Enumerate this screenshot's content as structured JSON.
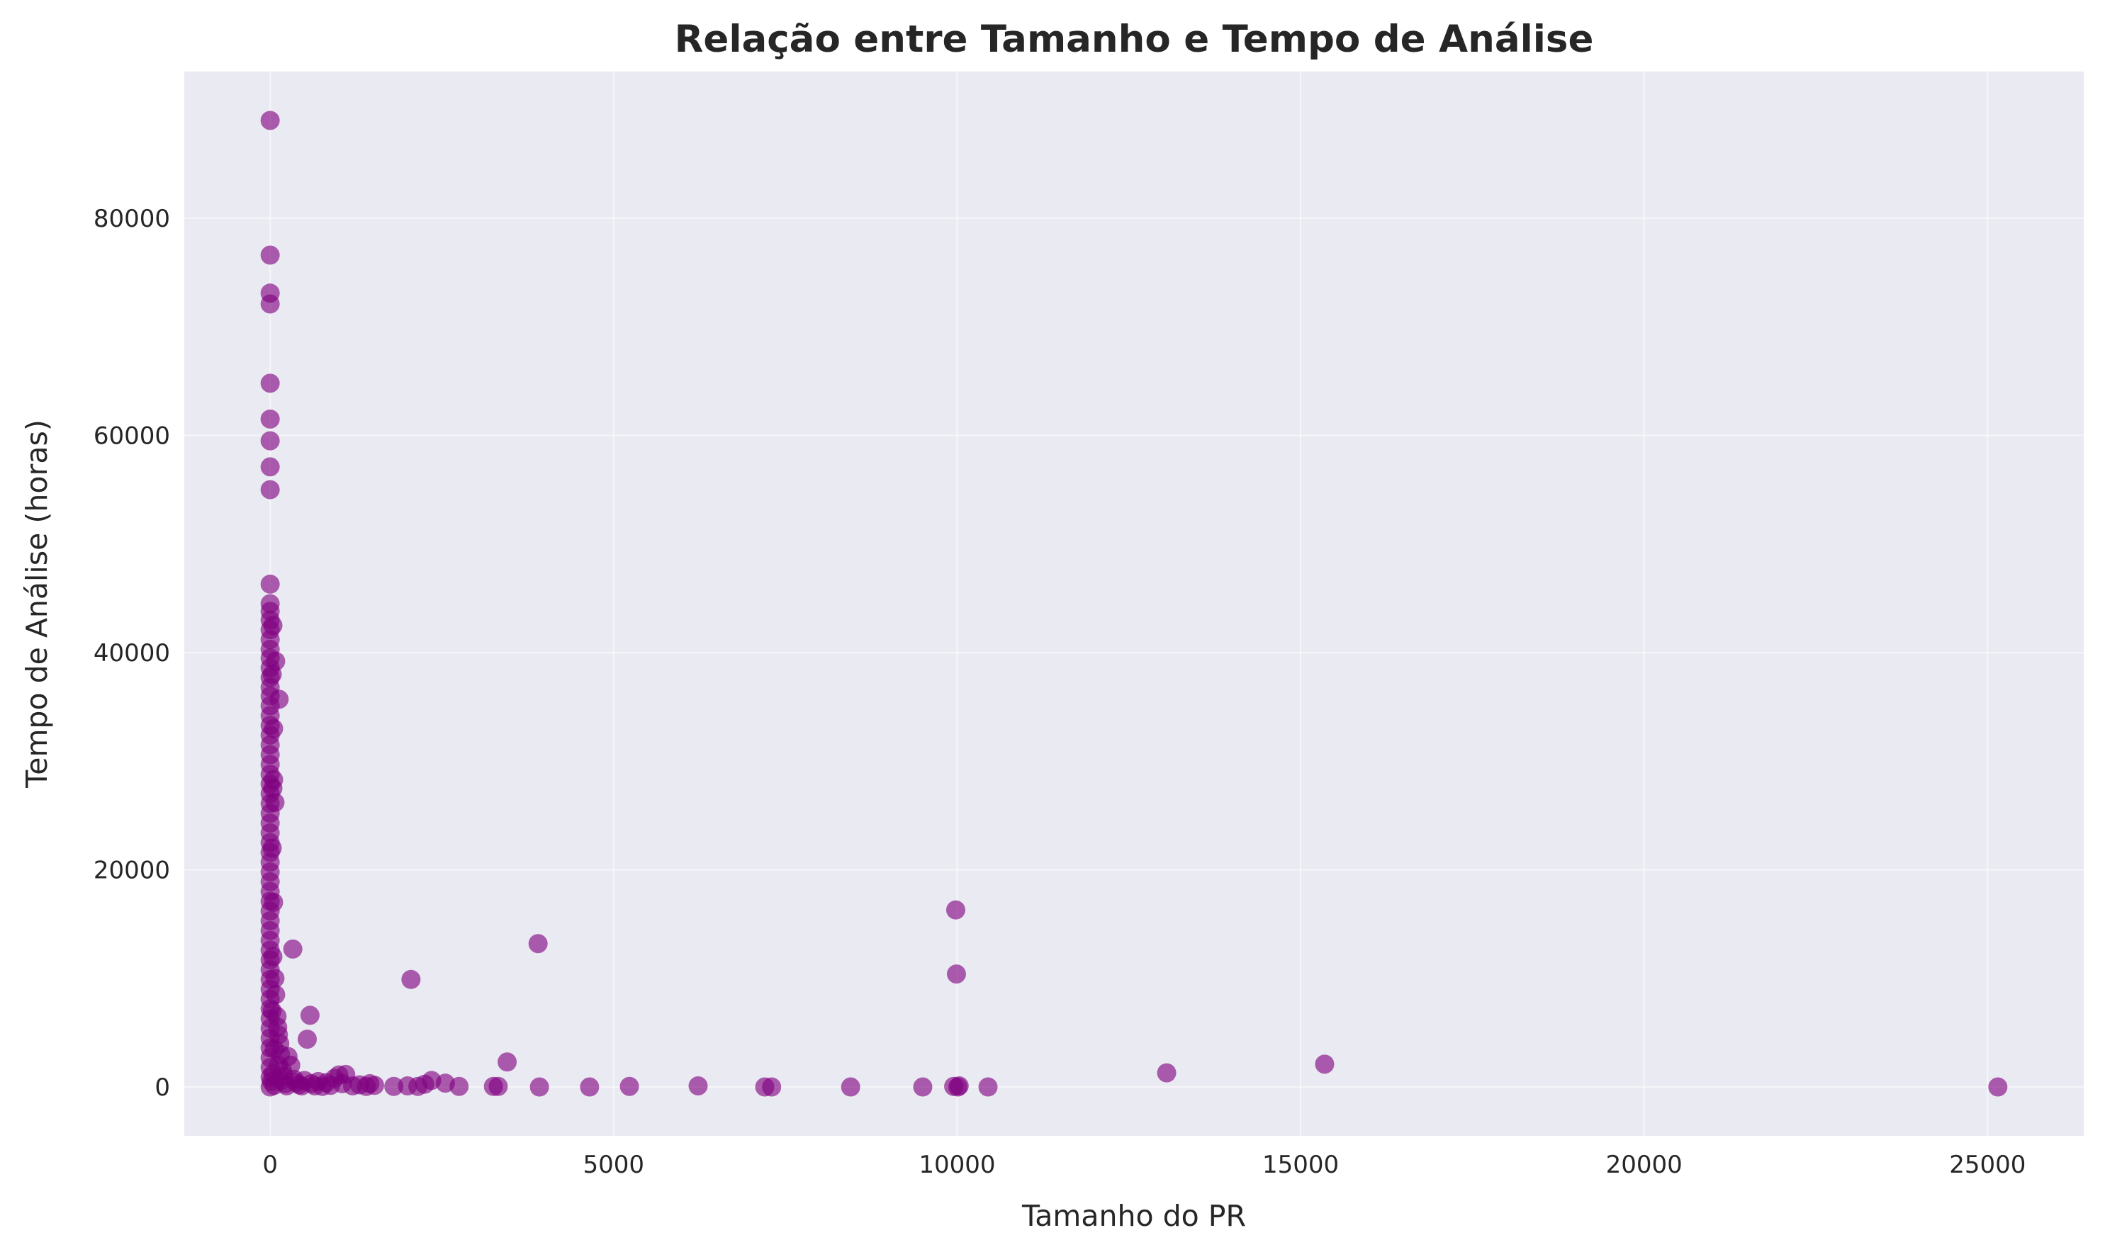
{
  "chart_data": {
    "type": "scatter",
    "title": "Relação entre Tamanho e Tempo de Análise",
    "xlabel": "Tamanho do PR",
    "ylabel": "Tempo de Análise (horas)",
    "xlim": [
      -1250,
      26400
    ],
    "ylim": [
      -4500,
      93500
    ],
    "x_ticks": [
      0,
      5000,
      10000,
      15000,
      20000,
      25000
    ],
    "x_tick_labels": [
      "0",
      "5000",
      "10000",
      "15000",
      "20000",
      "25000"
    ],
    "y_ticks": [
      0,
      20000,
      40000,
      60000,
      80000
    ],
    "y_tick_labels": [
      "0",
      "20000",
      "40000",
      "60000",
      "80000"
    ],
    "grid": true,
    "legend": "none",
    "colors": {
      "point": "#800080",
      "background": "#eaeaf2",
      "grid": "#ffffff"
    },
    "points": [
      {
        "x": 0,
        "y": 89000
      },
      {
        "x": 0,
        "y": 76600
      },
      {
        "x": 0,
        "y": 73100
      },
      {
        "x": 0,
        "y": 72100
      },
      {
        "x": 0,
        "y": 64800
      },
      {
        "x": 0,
        "y": 61500
      },
      {
        "x": 0,
        "y": 59500
      },
      {
        "x": 0,
        "y": 57100
      },
      {
        "x": 0,
        "y": 55000
      },
      {
        "x": 0,
        "y": 46300
      },
      {
        "x": 0,
        "y": 44500
      },
      {
        "x": 0,
        "y": 43800
      },
      {
        "x": 0,
        "y": 43000
      },
      {
        "x": 0,
        "y": 42100
      },
      {
        "x": 0,
        "y": 41200
      },
      {
        "x": 0,
        "y": 40300
      },
      {
        "x": 0,
        "y": 39500
      },
      {
        "x": 0,
        "y": 38600
      },
      {
        "x": 0,
        "y": 37700
      },
      {
        "x": 0,
        "y": 36800
      },
      {
        "x": 0,
        "y": 36000
      },
      {
        "x": 0,
        "y": 35100
      },
      {
        "x": 0,
        "y": 34200
      },
      {
        "x": 0,
        "y": 33300
      },
      {
        "x": 0,
        "y": 32400
      },
      {
        "x": 0,
        "y": 31500
      },
      {
        "x": 0,
        "y": 30600
      },
      {
        "x": 0,
        "y": 29700
      },
      {
        "x": 0,
        "y": 28800
      },
      {
        "x": 0,
        "y": 27900
      },
      {
        "x": 0,
        "y": 27000
      },
      {
        "x": 0,
        "y": 26100
      },
      {
        "x": 0,
        "y": 25200
      },
      {
        "x": 0,
        "y": 24300
      },
      {
        "x": 0,
        "y": 23400
      },
      {
        "x": 0,
        "y": 22500
      },
      {
        "x": 0,
        "y": 21600
      },
      {
        "x": 0,
        "y": 20700
      },
      {
        "x": 0,
        "y": 19800
      },
      {
        "x": 0,
        "y": 18900
      },
      {
        "x": 0,
        "y": 18000
      },
      {
        "x": 0,
        "y": 17100
      },
      {
        "x": 0,
        "y": 16200
      },
      {
        "x": 0,
        "y": 15300
      },
      {
        "x": 0,
        "y": 14400
      },
      {
        "x": 0,
        "y": 13500
      },
      {
        "x": 0,
        "y": 12600
      },
      {
        "x": 0,
        "y": 11700
      },
      {
        "x": 0,
        "y": 10800
      },
      {
        "x": 0,
        "y": 9900
      },
      {
        "x": 0,
        "y": 9000
      },
      {
        "x": 0,
        "y": 8100
      },
      {
        "x": 0,
        "y": 7200
      },
      {
        "x": 0,
        "y": 6300
      },
      {
        "x": 0,
        "y": 5400
      },
      {
        "x": 0,
        "y": 4500
      },
      {
        "x": 0,
        "y": 3600
      },
      {
        "x": 0,
        "y": 2700
      },
      {
        "x": 0,
        "y": 1800
      },
      {
        "x": 0,
        "y": 900
      },
      {
        "x": 0,
        "y": 0
      },
      {
        "x": 40,
        "y": 42500
      },
      {
        "x": 30,
        "y": 38000
      },
      {
        "x": 50,
        "y": 33000
      },
      {
        "x": 40,
        "y": 27500
      },
      {
        "x": 30,
        "y": 22000
      },
      {
        "x": 50,
        "y": 17000
      },
      {
        "x": 40,
        "y": 12000
      },
      {
        "x": 30,
        "y": 7000
      },
      {
        "x": 60,
        "y": 3500
      },
      {
        "x": 40,
        "y": 1200
      },
      {
        "x": 20,
        "y": 500
      },
      {
        "x": 60,
        "y": 150
      },
      {
        "x": 80,
        "y": 39200
      },
      {
        "x": 50,
        "y": 28300
      },
      {
        "x": 70,
        "y": 26200
      },
      {
        "x": 70,
        "y": 10000
      },
      {
        "x": 80,
        "y": 8500
      },
      {
        "x": 100,
        "y": 6500
      },
      {
        "x": 110,
        "y": 5500
      },
      {
        "x": 120,
        "y": 4800
      },
      {
        "x": 130,
        "y": 35700
      },
      {
        "x": 140,
        "y": 4000
      },
      {
        "x": 150,
        "y": 3000
      },
      {
        "x": 120,
        "y": 2000
      },
      {
        "x": 180,
        "y": 1500
      },
      {
        "x": 200,
        "y": 1000
      },
      {
        "x": 160,
        "y": 600
      },
      {
        "x": 220,
        "y": 300
      },
      {
        "x": 240,
        "y": 100
      },
      {
        "x": 260,
        "y": 2800
      },
      {
        "x": 300,
        "y": 2000
      },
      {
        "x": 330,
        "y": 12700
      },
      {
        "x": 350,
        "y": 700
      },
      {
        "x": 380,
        "y": 400
      },
      {
        "x": 420,
        "y": 200
      },
      {
        "x": 460,
        "y": 100
      },
      {
        "x": 500,
        "y": 600
      },
      {
        "x": 540,
        "y": 4400
      },
      {
        "x": 580,
        "y": 6600
      },
      {
        "x": 600,
        "y": 300
      },
      {
        "x": 650,
        "y": 100
      },
      {
        "x": 700,
        "y": 500
      },
      {
        "x": 760,
        "y": 50
      },
      {
        "x": 820,
        "y": 400
      },
      {
        "x": 880,
        "y": 150
      },
      {
        "x": 940,
        "y": 800
      },
      {
        "x": 1000,
        "y": 1100
      },
      {
        "x": 1050,
        "y": 300
      },
      {
        "x": 1100,
        "y": 1150
      },
      {
        "x": 1200,
        "y": 100
      },
      {
        "x": 1300,
        "y": 200
      },
      {
        "x": 1400,
        "y": 50
      },
      {
        "x": 1450,
        "y": 300
      },
      {
        "x": 1520,
        "y": 150
      },
      {
        "x": 1800,
        "y": 50
      },
      {
        "x": 2000,
        "y": 100
      },
      {
        "x": 2050,
        "y": 9900
      },
      {
        "x": 2150,
        "y": 50
      },
      {
        "x": 2250,
        "y": 250
      },
      {
        "x": 2350,
        "y": 600
      },
      {
        "x": 2550,
        "y": 350
      },
      {
        "x": 2750,
        "y": 50
      },
      {
        "x": 3250,
        "y": 50
      },
      {
        "x": 3320,
        "y": 50
      },
      {
        "x": 3450,
        "y": 2300
      },
      {
        "x": 3900,
        "y": 13200
      },
      {
        "x": 3920,
        "y": 0
      },
      {
        "x": 4650,
        "y": 0
      },
      {
        "x": 5230,
        "y": 50
      },
      {
        "x": 6230,
        "y": 100
      },
      {
        "x": 7200,
        "y": 0
      },
      {
        "x": 7300,
        "y": 0
      },
      {
        "x": 8450,
        "y": 0
      },
      {
        "x": 9500,
        "y": 0
      },
      {
        "x": 9980,
        "y": 16300
      },
      {
        "x": 9990,
        "y": 10400
      },
      {
        "x": 9950,
        "y": 50
      },
      {
        "x": 10010,
        "y": 0
      },
      {
        "x": 10030,
        "y": 100
      },
      {
        "x": 10450,
        "y": 0
      },
      {
        "x": 13050,
        "y": 1300
      },
      {
        "x": 15350,
        "y": 2100
      },
      {
        "x": 25150,
        "y": 0
      }
    ]
  }
}
